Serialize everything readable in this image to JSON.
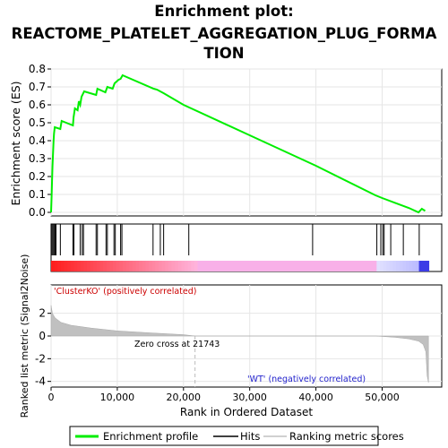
{
  "title_lines": [
    "Enrichment plot:",
    "REACTOME_PLATELET_AGGREGATION_PLUG_FORMA",
    "TION"
  ],
  "chart_data": {
    "type": "line",
    "xlabel": "Rank in Ordered Dataset",
    "xlim": [
      0,
      59000
    ],
    "x_ticks": [
      0,
      10000,
      20000,
      30000,
      40000,
      50000
    ],
    "x_tick_labels": [
      "0",
      "10,000",
      "20,000",
      "30,000",
      "40,000",
      "50,000"
    ],
    "panels": {
      "enrichment": {
        "ylabel": "Enrichment score (ES)",
        "ylim": [
          -0.02,
          0.8
        ],
        "y_ticks": [
          0.0,
          0.1,
          0.2,
          0.3,
          0.4,
          0.5,
          0.6,
          0.7,
          0.8
        ],
        "y_tick_labels": [
          "0.0",
          "0.1",
          "0.2",
          "0.3",
          "0.4",
          "0.5",
          "0.6",
          "0.7",
          "0.8"
        ],
        "series": [
          {
            "name": "Enrichment profile",
            "color": "#00ee00",
            "x": [
              0,
              80,
              150,
              220,
              300,
              380,
              450,
              550,
              1400,
              1600,
              3300,
              3400,
              3600,
              4000,
              4200,
              4400,
              4600,
              4800,
              5000,
              6800,
              7000,
              7300,
              8200,
              8500,
              9300,
              9600,
              10200,
              10500,
              10800,
              15500,
              16000,
              17000,
              20000,
              30000,
              40000,
              49000,
              50000,
              52000,
              54000,
              55500,
              56000,
              56500
            ],
            "y": [
              0.0,
              0.09,
              0.18,
              0.26,
              0.33,
              0.4,
              0.44,
              0.475,
              0.465,
              0.51,
              0.485,
              0.53,
              0.58,
              0.57,
              0.62,
              0.6,
              0.645,
              0.66,
              0.675,
              0.655,
              0.69,
              0.685,
              0.67,
              0.7,
              0.69,
              0.72,
              0.74,
              0.745,
              0.765,
              0.69,
              0.685,
              0.665,
              0.6,
              0.43,
              0.26,
              0.095,
              0.08,
              0.052,
              0.025,
              0.0,
              0.02,
              0.008
            ]
          }
        ]
      },
      "hits": {
        "positions": [
          150,
          300,
          450,
          600,
          750,
          1400,
          3300,
          3450,
          4400,
          4700,
          4900,
          6800,
          7000,
          8300,
          8500,
          9500,
          9700,
          10500,
          10700,
          15400,
          16500,
          17000,
          20800,
          39500,
          49200,
          49800,
          50100,
          50300,
          51300,
          53200,
          55600
        ]
      },
      "ranked_metric": {
        "ylabel": "Ranked list metric (Signal2Noise)",
        "ylim": [
          -4.5,
          4.5
        ],
        "y_ticks": [
          2,
          0,
          -2,
          -4
        ],
        "y_tick_labels": [
          "2",
          "0",
          "-2",
          "-4"
        ],
        "x": [
          0,
          200,
          600,
          1500,
          3000,
          6000,
          10000,
          15000,
          20000,
          21743,
          49000,
          52000,
          54000,
          55500,
          56200,
          56600,
          56800,
          57000
        ],
        "values": [
          2.7,
          2.0,
          1.6,
          1.2,
          0.95,
          0.7,
          0.45,
          0.28,
          0.12,
          0.0,
          0.0,
          -0.12,
          -0.25,
          -0.45,
          -0.75,
          -1.4,
          -3.5,
          -4.1
        ],
        "zero_cross_label": "Zero cross at 21743",
        "zero_cross": 21743,
        "pos_label": "'ClusterKO' (positively correlated)",
        "neg_label": "'WT' (negatively correlated)"
      }
    },
    "legend": {
      "placement": "bottom",
      "entries": [
        {
          "label": "Enrichment profile",
          "color": "#00ee00"
        },
        {
          "label": "Hits",
          "color": "#000000"
        },
        {
          "label": "Ranking metric scores",
          "color": "#c0c0c0"
        }
      ]
    }
  }
}
